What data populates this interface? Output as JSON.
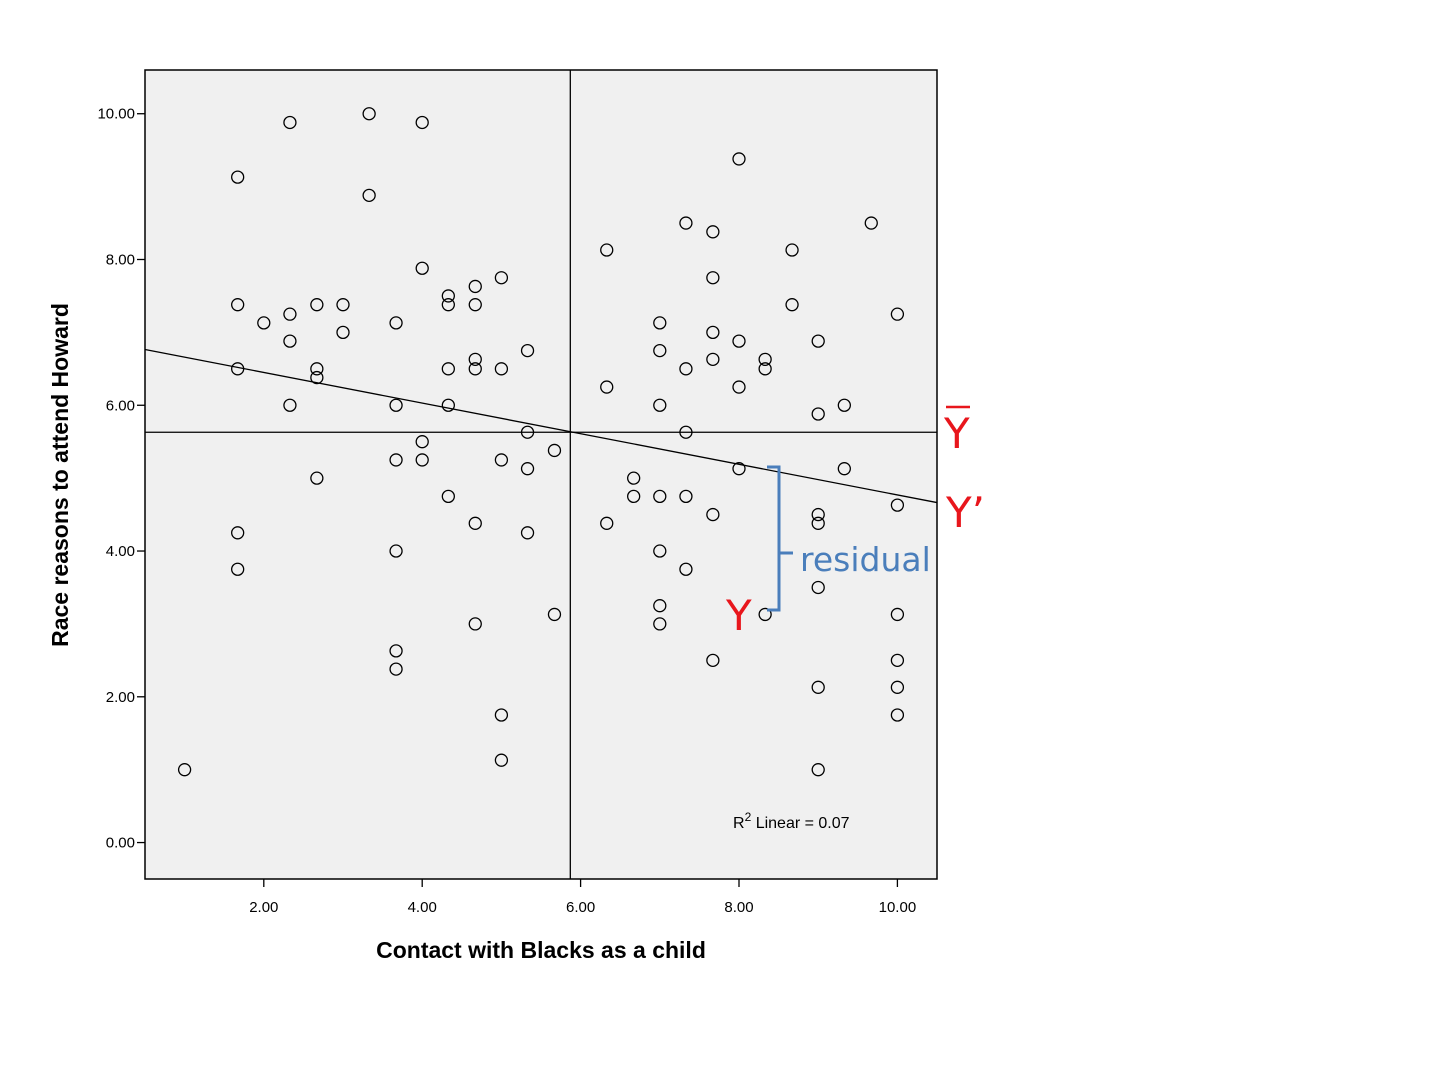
{
  "chart_data": {
    "type": "scatter",
    "xlabel": "Contact with Blacks as a child",
    "ylabel": "Race reasons to attend Howard",
    "xlim": [
      0.5,
      10.5
    ],
    "ylim": [
      -0.5,
      10.6
    ],
    "xticks": [
      "2.00",
      "4.00",
      "6.00",
      "8.00",
      "10.00"
    ],
    "yticks": [
      "0.00",
      "2.00",
      "4.00",
      "6.00",
      "8.00",
      "10.00"
    ],
    "grid": false,
    "x_mean": 5.87,
    "y_mean": 5.63,
    "fit_line": {
      "intercept": 6.87,
      "slope": -0.21
    },
    "fit_label": {
      "prefix": "R",
      "sup": "2",
      "suffix": " Linear = 0.07"
    },
    "annotations": {
      "ybar": "Y",
      "yprime": "Y’",
      "y": "Y",
      "residual": "residual"
    },
    "points": [
      {
        "x": 1.0,
        "y": 1.0
      },
      {
        "x": 1.67,
        "y": 9.13
      },
      {
        "x": 1.67,
        "y": 7.38
      },
      {
        "x": 1.67,
        "y": 6.5
      },
      {
        "x": 1.67,
        "y": 4.25
      },
      {
        "x": 1.67,
        "y": 3.75
      },
      {
        "x": 2.0,
        "y": 7.13
      },
      {
        "x": 2.33,
        "y": 9.88
      },
      {
        "x": 2.33,
        "y": 7.25
      },
      {
        "x": 2.33,
        "y": 6.88
      },
      {
        "x": 2.33,
        "y": 6.0
      },
      {
        "x": 2.67,
        "y": 7.38
      },
      {
        "x": 2.67,
        "y": 6.5
      },
      {
        "x": 2.67,
        "y": 6.38
      },
      {
        "x": 2.67,
        "y": 5.0
      },
      {
        "x": 3.0,
        "y": 7.38
      },
      {
        "x": 3.0,
        "y": 7.0
      },
      {
        "x": 3.33,
        "y": 10.0
      },
      {
        "x": 3.33,
        "y": 8.88
      },
      {
        "x": 3.67,
        "y": 7.13
      },
      {
        "x": 3.67,
        "y": 6.0
      },
      {
        "x": 3.67,
        "y": 5.25
      },
      {
        "x": 3.67,
        "y": 4.0
      },
      {
        "x": 3.67,
        "y": 2.63
      },
      {
        "x": 3.67,
        "y": 2.38
      },
      {
        "x": 4.0,
        "y": 9.88
      },
      {
        "x": 4.0,
        "y": 7.88
      },
      {
        "x": 4.0,
        "y": 5.5
      },
      {
        "x": 4.0,
        "y": 5.25
      },
      {
        "x": 4.33,
        "y": 7.5
      },
      {
        "x": 4.33,
        "y": 7.38
      },
      {
        "x": 4.33,
        "y": 6.5
      },
      {
        "x": 4.33,
        "y": 6.0
      },
      {
        "x": 4.33,
        "y": 4.75
      },
      {
        "x": 4.67,
        "y": 7.63
      },
      {
        "x": 4.67,
        "y": 7.38
      },
      {
        "x": 4.67,
        "y": 6.63
      },
      {
        "x": 4.67,
        "y": 6.5
      },
      {
        "x": 4.67,
        "y": 4.38
      },
      {
        "x": 4.67,
        "y": 3.0
      },
      {
        "x": 5.0,
        "y": 7.75
      },
      {
        "x": 5.0,
        "y": 6.5
      },
      {
        "x": 5.0,
        "y": 5.25
      },
      {
        "x": 5.0,
        "y": 1.75
      },
      {
        "x": 5.0,
        "y": 1.13
      },
      {
        "x": 5.33,
        "y": 6.75
      },
      {
        "x": 5.33,
        "y": 5.63
      },
      {
        "x": 5.33,
        "y": 5.13
      },
      {
        "x": 5.33,
        "y": 4.25
      },
      {
        "x": 5.67,
        "y": 5.38
      },
      {
        "x": 5.67,
        "y": 3.13
      },
      {
        "x": 6.33,
        "y": 8.13
      },
      {
        "x": 6.33,
        "y": 6.25
      },
      {
        "x": 6.33,
        "y": 4.38
      },
      {
        "x": 6.67,
        "y": 5.0
      },
      {
        "x": 6.67,
        "y": 4.75
      },
      {
        "x": 7.0,
        "y": 7.13
      },
      {
        "x": 7.0,
        "y": 6.75
      },
      {
        "x": 7.0,
        "y": 6.0
      },
      {
        "x": 7.0,
        "y": 4.75
      },
      {
        "x": 7.0,
        "y": 4.0
      },
      {
        "x": 7.0,
        "y": 3.25
      },
      {
        "x": 7.0,
        "y": 3.0
      },
      {
        "x": 7.33,
        "y": 8.5
      },
      {
        "x": 7.33,
        "y": 6.5
      },
      {
        "x": 7.33,
        "y": 5.63
      },
      {
        "x": 7.33,
        "y": 4.75
      },
      {
        "x": 7.33,
        "y": 3.75
      },
      {
        "x": 7.67,
        "y": 8.38
      },
      {
        "x": 7.67,
        "y": 7.75
      },
      {
        "x": 7.67,
        "y": 7.0
      },
      {
        "x": 7.67,
        "y": 6.63
      },
      {
        "x": 7.67,
        "y": 4.5
      },
      {
        "x": 7.67,
        "y": 2.5
      },
      {
        "x": 8.0,
        "y": 9.38
      },
      {
        "x": 8.0,
        "y": 6.88
      },
      {
        "x": 8.0,
        "y": 6.25
      },
      {
        "x": 8.0,
        "y": 5.13
      },
      {
        "x": 8.33,
        "y": 6.63
      },
      {
        "x": 8.33,
        "y": 6.5
      },
      {
        "x": 8.33,
        "y": 3.13
      },
      {
        "x": 8.67,
        "y": 8.13
      },
      {
        "x": 8.67,
        "y": 7.38
      },
      {
        "x": 9.0,
        "y": 6.88
      },
      {
        "x": 9.0,
        "y": 5.88
      },
      {
        "x": 9.0,
        "y": 4.5
      },
      {
        "x": 9.0,
        "y": 4.38
      },
      {
        "x": 9.0,
        "y": 3.5
      },
      {
        "x": 9.0,
        "y": 2.13
      },
      {
        "x": 9.0,
        "y": 1.0
      },
      {
        "x": 9.33,
        "y": 6.0
      },
      {
        "x": 9.33,
        "y": 5.13
      },
      {
        "x": 9.67,
        "y": 8.5
      },
      {
        "x": 10.0,
        "y": 7.25
      },
      {
        "x": 10.0,
        "y": 4.63
      },
      {
        "x": 10.0,
        "y": 3.13
      },
      {
        "x": 10.0,
        "y": 2.5
      },
      {
        "x": 10.0,
        "y": 2.13
      },
      {
        "x": 10.0,
        "y": 1.75
      }
    ]
  }
}
